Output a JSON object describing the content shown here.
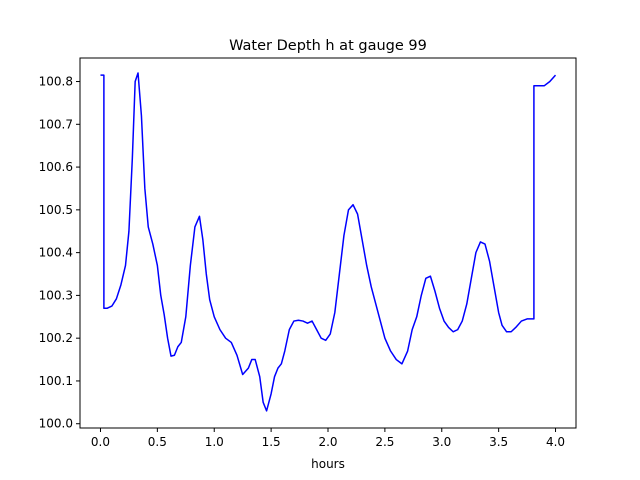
{
  "chart_data": {
    "type": "line",
    "title": "Water Depth h at gauge 99",
    "xlabel": "hours",
    "ylabel": "",
    "xlim": [
      -0.18,
      4.18
    ],
    "ylim": [
      99.99,
      100.855
    ],
    "xticks": [
      0.0,
      0.5,
      1.0,
      1.5,
      2.0,
      2.5,
      3.0,
      3.5,
      4.0
    ],
    "xtick_labels": [
      "0.0",
      "0.5",
      "1.0",
      "1.5",
      "2.0",
      "2.5",
      "3.0",
      "3.5",
      "4.0"
    ],
    "yticks": [
      100.0,
      100.1,
      100.2,
      100.3,
      100.4,
      100.5,
      100.6,
      100.7,
      100.8
    ],
    "ytick_labels": [
      "100.0",
      "100.1",
      "100.2",
      "100.3",
      "100.4",
      "100.5",
      "100.6",
      "100.7",
      "100.8"
    ],
    "grid": false,
    "legend": "none",
    "series": [
      {
        "color": "#0000ff",
        "x": [
          0.0,
          0.03,
          0.03,
          0.06,
          0.1,
          0.14,
          0.18,
          0.22,
          0.25,
          0.28,
          0.305,
          0.33,
          0.36,
          0.39,
          0.42,
          0.46,
          0.5,
          0.53,
          0.56,
          0.59,
          0.62,
          0.65,
          0.68,
          0.71,
          0.75,
          0.79,
          0.83,
          0.87,
          0.9,
          0.93,
          0.96,
          1.0,
          1.05,
          1.1,
          1.15,
          1.2,
          1.25,
          1.3,
          1.33,
          1.36,
          1.4,
          1.43,
          1.46,
          1.5,
          1.53,
          1.56,
          1.59,
          1.62,
          1.66,
          1.7,
          1.74,
          1.78,
          1.82,
          1.86,
          1.9,
          1.94,
          1.98,
          2.02,
          2.06,
          2.1,
          2.14,
          2.18,
          2.22,
          2.26,
          2.3,
          2.34,
          2.38,
          2.42,
          2.46,
          2.5,
          2.55,
          2.6,
          2.65,
          2.7,
          2.74,
          2.78,
          2.82,
          2.86,
          2.9,
          2.94,
          2.98,
          3.02,
          3.06,
          3.1,
          3.14,
          3.18,
          3.22,
          3.26,
          3.3,
          3.34,
          3.38,
          3.42,
          3.46,
          3.5,
          3.53,
          3.57,
          3.61,
          3.65,
          3.7,
          3.75,
          3.79,
          3.81,
          3.81,
          3.85,
          3.9,
          3.95,
          4.0
        ],
        "y": [
          100.815,
          100.815,
          100.27,
          100.27,
          100.275,
          100.292,
          100.325,
          100.37,
          100.45,
          100.62,
          100.8,
          100.82,
          100.72,
          100.55,
          100.46,
          100.42,
          100.37,
          100.3,
          100.255,
          100.2,
          100.158,
          100.16,
          100.18,
          100.19,
          100.25,
          100.37,
          100.46,
          100.485,
          100.43,
          100.35,
          100.29,
          100.25,
          100.22,
          100.2,
          100.19,
          100.16,
          100.115,
          100.13,
          100.15,
          100.15,
          100.11,
          100.05,
          100.03,
          100.07,
          100.11,
          100.13,
          100.14,
          100.17,
          100.22,
          100.24,
          100.242,
          100.24,
          100.235,
          100.24,
          100.22,
          100.2,
          100.195,
          100.21,
          100.26,
          100.35,
          100.44,
          100.5,
          100.512,
          100.49,
          100.43,
          100.37,
          100.32,
          100.28,
          100.24,
          100.2,
          100.17,
          100.15,
          100.14,
          100.17,
          100.22,
          100.25,
          100.3,
          100.34,
          100.345,
          100.31,
          100.27,
          100.24,
          100.225,
          100.215,
          100.22,
          100.24,
          100.28,
          100.34,
          100.4,
          100.425,
          100.42,
          100.38,
          100.32,
          100.26,
          100.23,
          100.215,
          100.215,
          100.225,
          100.24,
          100.245,
          100.245,
          100.245,
          100.79,
          100.79,
          100.79,
          100.8,
          100.815
        ]
      }
    ]
  }
}
